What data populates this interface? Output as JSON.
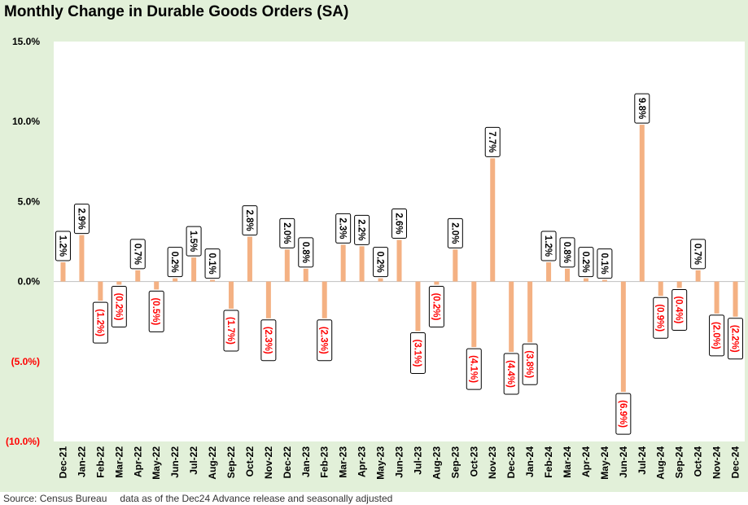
{
  "header": {
    "title": "Monthly Change in Durable Goods Orders (SA)"
  },
  "footer": {
    "source": "Source: Census Bureau",
    "note": "data as of the Dec24 Advance release and seasonally adjusted"
  },
  "colors": {
    "background": "#e2f0d9",
    "plot": "#ffffff",
    "bar": "#f4b183",
    "negative_text": "#ff0000",
    "positive_text": "#000000"
  },
  "chart_data": {
    "type": "bar",
    "title": "Monthly Change in Durable Goods Orders (SA)",
    "ylim": [
      -10,
      15
    ],
    "yticks": [
      15,
      10,
      5,
      0,
      -5,
      -10
    ],
    "ytick_labels": [
      "15.0%",
      "10.0%",
      "5.0%",
      "0.0%",
      "(5.0%)",
      "(10.0%)"
    ],
    "categories": [
      "Dec-21",
      "Jan-22",
      "Feb-22",
      "Mar-22",
      "Apr-22",
      "May-22",
      "Jun-22",
      "Jul-22",
      "Aug-22",
      "Sep-22",
      "Oct-22",
      "Nov-22",
      "Dec-22",
      "Jan-23",
      "Feb-23",
      "Mar-23",
      "Apr-23",
      "May-23",
      "Jun-23",
      "Jul-23",
      "Aug-23",
      "Sep-23",
      "Oct-23",
      "Nov-23",
      "Dec-23",
      "Jan-24",
      "Feb-24",
      "Mar-24",
      "Apr-24",
      "May-24",
      "Jun-24",
      "Jul-24",
      "Aug-24",
      "Sep-24",
      "Oct-24",
      "Nov-24",
      "Dec-24"
    ],
    "values": [
      1.2,
      2.9,
      -1.2,
      -0.2,
      0.7,
      -0.5,
      0.2,
      1.5,
      0.1,
      -1.7,
      2.8,
      -2.3,
      2.0,
      0.8,
      -2.3,
      2.3,
      2.2,
      0.2,
      2.6,
      -3.1,
      -0.2,
      2.0,
      -4.1,
      7.7,
      -4.4,
      -3.8,
      1.2,
      0.8,
      0.2,
      0.1,
      -6.9,
      9.8,
      -0.9,
      -0.4,
      0.7,
      -2.0,
      -2.2
    ],
    "data_labels": [
      "1.2%",
      "2.9%",
      "(1.2%)",
      "(0.2%)",
      "0.7%",
      "(0.5%)",
      "0.2%",
      "1.5%",
      "0.1%",
      "(1.7%)",
      "2.8%",
      "(2.3%)",
      "2.0%",
      "0.8%",
      "(2.3%)",
      "2.3%",
      "2.2%",
      "0.2%",
      "2.6%",
      "(3.1%)",
      "(0.2%)",
      "2.0%",
      "(4.1%)",
      "7.7%",
      "(4.4%)",
      "(3.8%)",
      "1.2%",
      "0.8%",
      "0.2%",
      "0.1%",
      "(6.9%)",
      "9.8%",
      "(0.9%)",
      "(0.4%)",
      "0.7%",
      "(2.0%)",
      "(2.2%)"
    ],
    "grid": false,
    "legend": "none"
  }
}
